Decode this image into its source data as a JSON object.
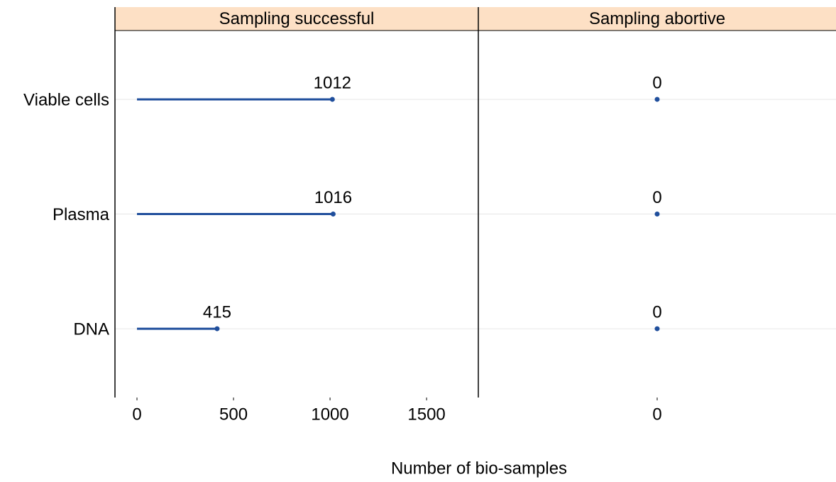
{
  "chart_data": {
    "type": "lollipop",
    "xlabel": "Number of bio-samples",
    "categories": [
      "Viable cells",
      "Plasma",
      "DNA"
    ],
    "grid": true,
    "facets": [
      {
        "title": "Sampling successful",
        "values": [
          1012,
          1016,
          415
        ],
        "color": "#1f4e9c",
        "xlim": [
          -114,
          1768
        ],
        "xticks": [
          0,
          500,
          1000,
          1500
        ]
      },
      {
        "title": "Sampling abortive",
        "values": [
          0,
          0,
          0
        ],
        "color": "#1f4e9c",
        "xlim": [
          -1,
          1
        ],
        "xticks": [
          0
        ]
      }
    ]
  }
}
